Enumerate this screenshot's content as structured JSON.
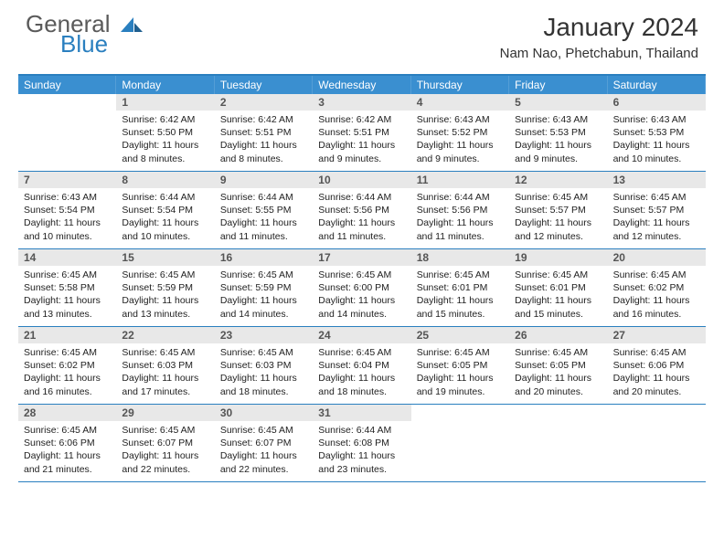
{
  "logo": {
    "general": "General",
    "blue": "Blue"
  },
  "header": {
    "month_title": "January 2024",
    "location": "Nam Nao, Phetchabun, Thailand"
  },
  "colors": {
    "header_bar": "#3a8fd0",
    "rule": "#2a7fbf",
    "daynum_bg": "#e8e8e8",
    "text": "#222222"
  },
  "weekdays": [
    "Sunday",
    "Monday",
    "Tuesday",
    "Wednesday",
    "Thursday",
    "Friday",
    "Saturday"
  ],
  "start_offset": 1,
  "days": [
    {
      "n": 1,
      "sunrise": "6:42 AM",
      "sunset": "5:50 PM",
      "daylight": "11 hours and 8 minutes."
    },
    {
      "n": 2,
      "sunrise": "6:42 AM",
      "sunset": "5:51 PM",
      "daylight": "11 hours and 8 minutes."
    },
    {
      "n": 3,
      "sunrise": "6:42 AM",
      "sunset": "5:51 PM",
      "daylight": "11 hours and 9 minutes."
    },
    {
      "n": 4,
      "sunrise": "6:43 AM",
      "sunset": "5:52 PM",
      "daylight": "11 hours and 9 minutes."
    },
    {
      "n": 5,
      "sunrise": "6:43 AM",
      "sunset": "5:53 PM",
      "daylight": "11 hours and 9 minutes."
    },
    {
      "n": 6,
      "sunrise": "6:43 AM",
      "sunset": "5:53 PM",
      "daylight": "11 hours and 10 minutes."
    },
    {
      "n": 7,
      "sunrise": "6:43 AM",
      "sunset": "5:54 PM",
      "daylight": "11 hours and 10 minutes."
    },
    {
      "n": 8,
      "sunrise": "6:44 AM",
      "sunset": "5:54 PM",
      "daylight": "11 hours and 10 minutes."
    },
    {
      "n": 9,
      "sunrise": "6:44 AM",
      "sunset": "5:55 PM",
      "daylight": "11 hours and 11 minutes."
    },
    {
      "n": 10,
      "sunrise": "6:44 AM",
      "sunset": "5:56 PM",
      "daylight": "11 hours and 11 minutes."
    },
    {
      "n": 11,
      "sunrise": "6:44 AM",
      "sunset": "5:56 PM",
      "daylight": "11 hours and 11 minutes."
    },
    {
      "n": 12,
      "sunrise": "6:45 AM",
      "sunset": "5:57 PM",
      "daylight": "11 hours and 12 minutes."
    },
    {
      "n": 13,
      "sunrise": "6:45 AM",
      "sunset": "5:57 PM",
      "daylight": "11 hours and 12 minutes."
    },
    {
      "n": 14,
      "sunrise": "6:45 AM",
      "sunset": "5:58 PM",
      "daylight": "11 hours and 13 minutes."
    },
    {
      "n": 15,
      "sunrise": "6:45 AM",
      "sunset": "5:59 PM",
      "daylight": "11 hours and 13 minutes."
    },
    {
      "n": 16,
      "sunrise": "6:45 AM",
      "sunset": "5:59 PM",
      "daylight": "11 hours and 14 minutes."
    },
    {
      "n": 17,
      "sunrise": "6:45 AM",
      "sunset": "6:00 PM",
      "daylight": "11 hours and 14 minutes."
    },
    {
      "n": 18,
      "sunrise": "6:45 AM",
      "sunset": "6:01 PM",
      "daylight": "11 hours and 15 minutes."
    },
    {
      "n": 19,
      "sunrise": "6:45 AM",
      "sunset": "6:01 PM",
      "daylight": "11 hours and 15 minutes."
    },
    {
      "n": 20,
      "sunrise": "6:45 AM",
      "sunset": "6:02 PM",
      "daylight": "11 hours and 16 minutes."
    },
    {
      "n": 21,
      "sunrise": "6:45 AM",
      "sunset": "6:02 PM",
      "daylight": "11 hours and 16 minutes."
    },
    {
      "n": 22,
      "sunrise": "6:45 AM",
      "sunset": "6:03 PM",
      "daylight": "11 hours and 17 minutes."
    },
    {
      "n": 23,
      "sunrise": "6:45 AM",
      "sunset": "6:03 PM",
      "daylight": "11 hours and 18 minutes."
    },
    {
      "n": 24,
      "sunrise": "6:45 AM",
      "sunset": "6:04 PM",
      "daylight": "11 hours and 18 minutes."
    },
    {
      "n": 25,
      "sunrise": "6:45 AM",
      "sunset": "6:05 PM",
      "daylight": "11 hours and 19 minutes."
    },
    {
      "n": 26,
      "sunrise": "6:45 AM",
      "sunset": "6:05 PM",
      "daylight": "11 hours and 20 minutes."
    },
    {
      "n": 27,
      "sunrise": "6:45 AM",
      "sunset": "6:06 PM",
      "daylight": "11 hours and 20 minutes."
    },
    {
      "n": 28,
      "sunrise": "6:45 AM",
      "sunset": "6:06 PM",
      "daylight": "11 hours and 21 minutes."
    },
    {
      "n": 29,
      "sunrise": "6:45 AM",
      "sunset": "6:07 PM",
      "daylight": "11 hours and 22 minutes."
    },
    {
      "n": 30,
      "sunrise": "6:45 AM",
      "sunset": "6:07 PM",
      "daylight": "11 hours and 22 minutes."
    },
    {
      "n": 31,
      "sunrise": "6:44 AM",
      "sunset": "6:08 PM",
      "daylight": "11 hours and 23 minutes."
    }
  ],
  "labels": {
    "sunrise": "Sunrise:",
    "sunset": "Sunset:",
    "daylight": "Daylight:"
  }
}
